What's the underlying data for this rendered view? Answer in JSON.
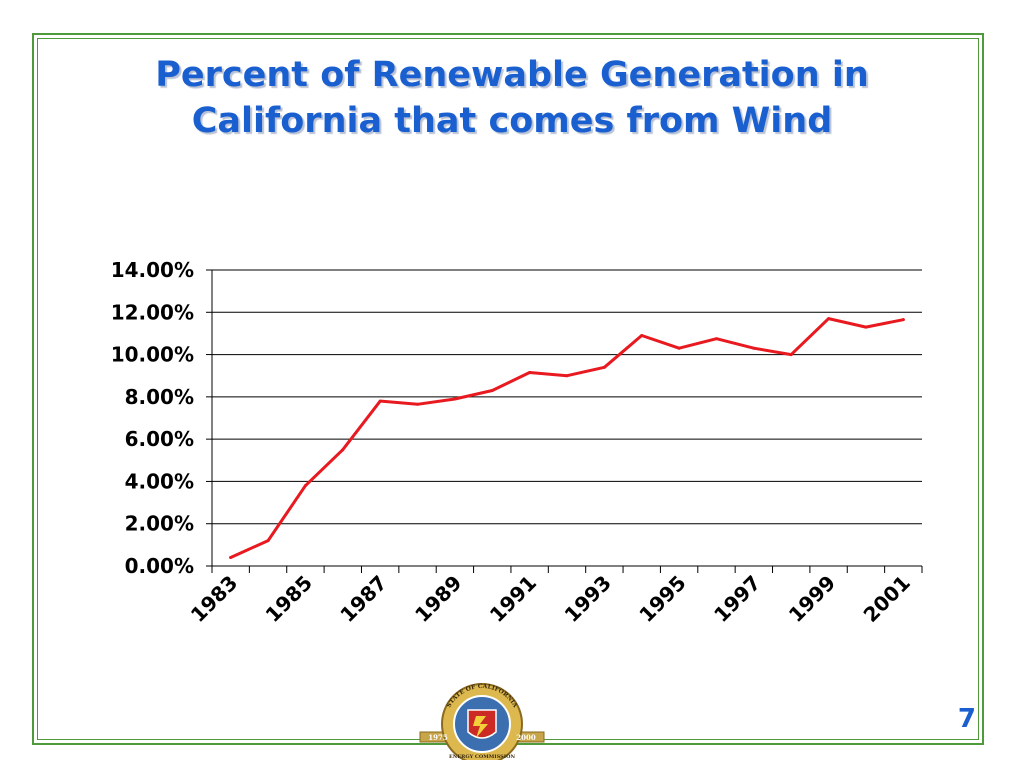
{
  "slide": {
    "title_line1": "Percent of Renewable Generation in",
    "title_line2": "California that comes from Wind",
    "page_number": "7"
  },
  "seal": {
    "text_top": "STATE OF CALIFORNIA",
    "text_bottom": "ENERGY COMMISSION",
    "year_left": "1975",
    "year_right": "2000"
  },
  "colors": {
    "title": "#1a5fd0",
    "frame": "#4f9a3a",
    "series_line": "#e8191f",
    "gridline": "#000000"
  },
  "chart_data": {
    "type": "line",
    "title": "",
    "xlabel": "",
    "ylabel": "",
    "x": [
      1983,
      1984,
      1985,
      1986,
      1987,
      1988,
      1989,
      1990,
      1991,
      1992,
      1993,
      1994,
      1995,
      1996,
      1997,
      1998,
      1999,
      2000,
      2001
    ],
    "x_tick_labels": [
      "1983",
      "1985",
      "1987",
      "1989",
      "1991",
      "1993",
      "1995",
      "1997",
      "1999",
      "2001"
    ],
    "y_tick_labels": [
      "0.00%",
      "2.00%",
      "4.00%",
      "6.00%",
      "8.00%",
      "10.00%",
      "12.00%",
      "14.00%"
    ],
    "ylim": [
      0,
      14
    ],
    "y_unit": "percent",
    "grid": true,
    "legend": "none",
    "series": [
      {
        "values": [
          0.4,
          1.2,
          3.8,
          5.5,
          7.8,
          7.65,
          7.9,
          8.3,
          9.15,
          9.0,
          9.4,
          10.9,
          10.3,
          10.75,
          10.3,
          10.0,
          11.7,
          11.3,
          11.65
        ]
      }
    ]
  }
}
